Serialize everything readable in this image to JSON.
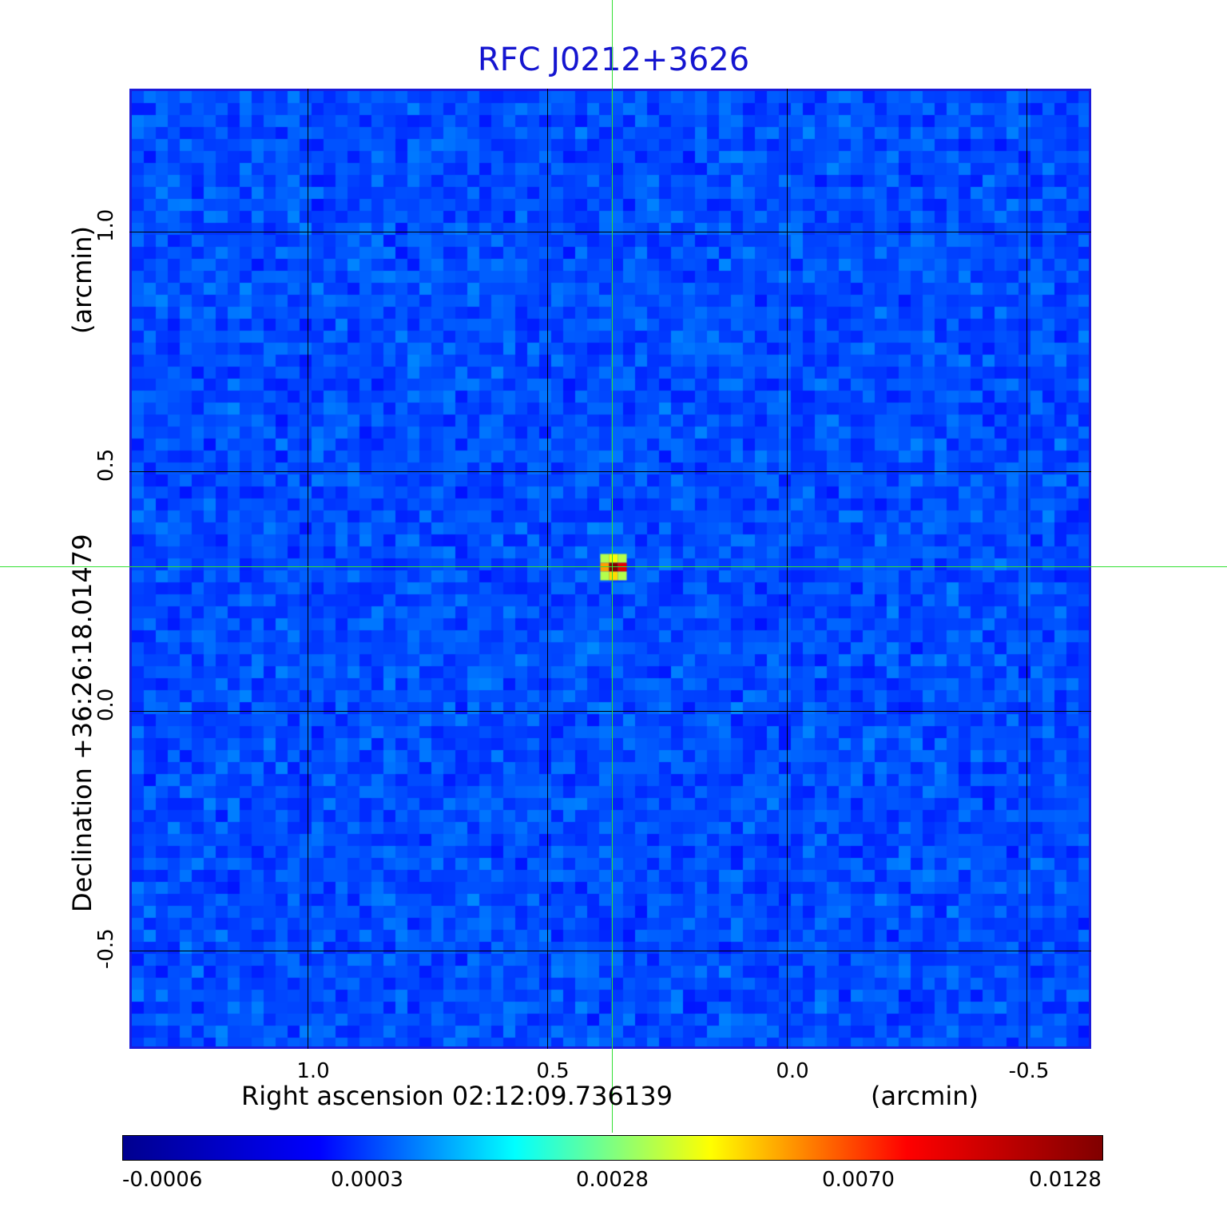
{
  "title": "RFC J0212+3626",
  "x_axis": {
    "label": "Right ascension  02:12:09.736139",
    "unit": "(arcmin)",
    "ticks": [
      "1.0",
      "0.5",
      "0.0",
      "-0.5"
    ]
  },
  "y_axis": {
    "label": "Declination  +36:26:18.01479",
    "unit": "(arcmin)",
    "ticks": [
      "1.0",
      "0.5",
      "0.0",
      "-0.5"
    ]
  },
  "colorbar": {
    "ticks": [
      "-0.0006",
      "0.0003",
      "0.0028",
      "0.0070",
      "0.0128"
    ],
    "colormap": [
      "#00008f",
      "#0000ff",
      "#00ffff",
      "#ffff00",
      "#ff0000",
      "#800000"
    ]
  },
  "image": {
    "background_color": "#2f6ff0",
    "crosshair_color": "#33e033",
    "source_peak_value": 0.0128
  }
}
